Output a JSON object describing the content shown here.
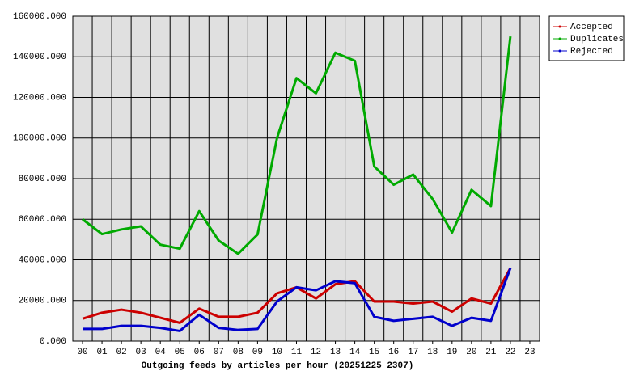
{
  "chart_data": {
    "type": "line",
    "title": "Outgoing feeds by articles per hour (20251225 2307)",
    "categories": [
      "00",
      "01",
      "02",
      "03",
      "04",
      "05",
      "06",
      "07",
      "08",
      "09",
      "10",
      "11",
      "12",
      "13",
      "14",
      "15",
      "16",
      "17",
      "18",
      "19",
      "20",
      "21",
      "22",
      "23"
    ],
    "series": [
      {
        "name": "Accepted",
        "color": "#cc0000",
        "values": [
          11000,
          14000,
          15500,
          14000,
          11500,
          9000,
          16000,
          12000,
          12000,
          14000,
          23500,
          26500,
          21000,
          28000,
          29500,
          19500,
          19500,
          18500,
          19500,
          14500,
          21000,
          18500,
          36000,
          null
        ]
      },
      {
        "name": "Duplicates",
        "color": "#00aa00",
        "values": [
          60000,
          52700,
          55000,
          56500,
          47500,
          45500,
          64000,
          49500,
          43000,
          52500,
          100000,
          129500,
          122000,
          142000,
          138000,
          86000,
          77000,
          82000,
          70000,
          53500,
          74500,
          66500,
          150000,
          null
        ]
      },
      {
        "name": "Rejected",
        "color": "#0000cc",
        "values": [
          6000,
          6000,
          7500,
          7500,
          6500,
          5000,
          13000,
          6500,
          5500,
          6000,
          19500,
          26500,
          25000,
          29500,
          28500,
          12000,
          10000,
          11000,
          12000,
          7500,
          11500,
          10000,
          36000,
          null
        ]
      }
    ],
    "ylim": [
      0,
      160000
    ],
    "yticks": [
      {
        "value": 0,
        "label": "0.000"
      },
      {
        "value": 20000,
        "label": "20000.000"
      },
      {
        "value": 40000,
        "label": "40000.000"
      },
      {
        "value": 60000,
        "label": "60000.000"
      },
      {
        "value": 80000,
        "label": "80000.000"
      },
      {
        "value": 100000,
        "label": "100000.000"
      },
      {
        "value": 120000,
        "label": "120000.000"
      },
      {
        "value": 140000,
        "label": "140000.000"
      },
      {
        "value": 160000,
        "label": "160000.000"
      }
    ],
    "grid": true
  }
}
